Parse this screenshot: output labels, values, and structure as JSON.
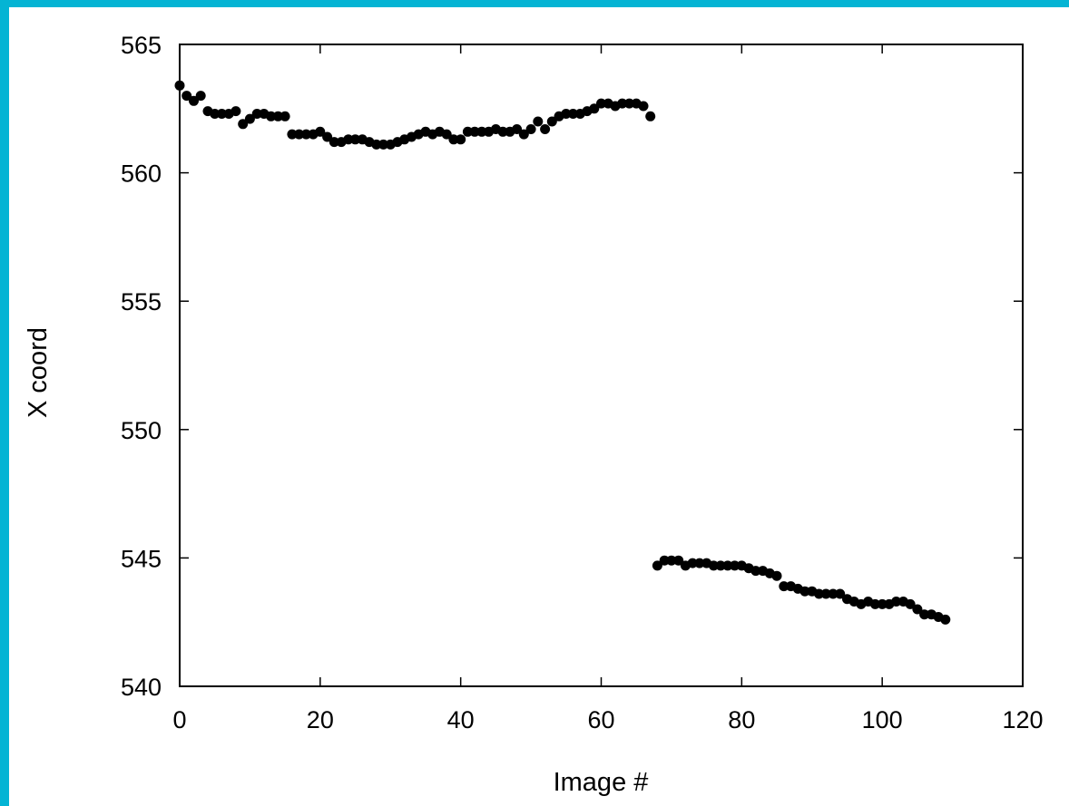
{
  "chart_data": {
    "type": "scatter",
    "title": "",
    "xlabel": "Image #",
    "ylabel": "X coord",
    "xlim": [
      0,
      120
    ],
    "ylim": [
      540,
      565
    ],
    "xticks": [
      0,
      20,
      40,
      60,
      80,
      100,
      120
    ],
    "yticks": [
      540,
      545,
      550,
      555,
      560,
      565
    ],
    "grid": false,
    "legend": "none",
    "colors": {
      "background": "#04b4d4",
      "plot_bg": "#ffffff",
      "marker": "#000000"
    },
    "series": [
      {
        "x": [
          0,
          1,
          2,
          3,
          4,
          5,
          6,
          7,
          8,
          9,
          10,
          11,
          12,
          13,
          14,
          15,
          16,
          17,
          18,
          19,
          20,
          21,
          22,
          23,
          24,
          25,
          26,
          27,
          28,
          29,
          30,
          31,
          32,
          33,
          34,
          35,
          36,
          37,
          38,
          39,
          40,
          41,
          42,
          43,
          44,
          45,
          46,
          47,
          48,
          49,
          50,
          51,
          52,
          53,
          54,
          55,
          56,
          57,
          58,
          59,
          60,
          61,
          62,
          63,
          64,
          65,
          66,
          67,
          68,
          69,
          70,
          71,
          72,
          73,
          74,
          75,
          76,
          77,
          78,
          79,
          80,
          81,
          82,
          83,
          84,
          85,
          86,
          87,
          88,
          89,
          90,
          91,
          92,
          93,
          94,
          95,
          96,
          97,
          98,
          99,
          100,
          101,
          102,
          103,
          104,
          105,
          106,
          107,
          108,
          109
        ],
        "y": [
          563.4,
          563.0,
          562.8,
          563.0,
          562.4,
          562.3,
          562.3,
          562.3,
          562.4,
          561.9,
          562.1,
          562.3,
          562.3,
          562.2,
          562.2,
          562.2,
          561.5,
          561.5,
          561.5,
          561.5,
          561.6,
          561.4,
          561.2,
          561.2,
          561.3,
          561.3,
          561.3,
          561.2,
          561.1,
          561.1,
          561.1,
          561.2,
          561.3,
          561.4,
          561.5,
          561.6,
          561.5,
          561.6,
          561.5,
          561.3,
          561.3,
          561.6,
          561.6,
          561.6,
          561.6,
          561.7,
          561.6,
          561.6,
          561.7,
          561.5,
          561.7,
          562.0,
          561.7,
          562.0,
          562.2,
          562.3,
          562.3,
          562.3,
          562.4,
          562.5,
          562.7,
          562.7,
          562.6,
          562.7,
          562.7,
          562.7,
          562.6,
          562.2,
          544.7,
          544.9,
          544.9,
          544.9,
          544.7,
          544.8,
          544.8,
          544.8,
          544.7,
          544.7,
          544.7,
          544.7,
          544.7,
          544.6,
          544.5,
          544.5,
          544.4,
          544.3,
          543.9,
          543.9,
          543.8,
          543.7,
          543.7,
          543.6,
          543.6,
          543.6,
          543.6,
          543.4,
          543.3,
          543.2,
          543.3,
          543.2,
          543.2,
          543.2,
          543.3,
          543.3,
          543.2,
          543.0,
          542.8,
          542.8,
          542.7,
          542.6
        ]
      }
    ]
  }
}
